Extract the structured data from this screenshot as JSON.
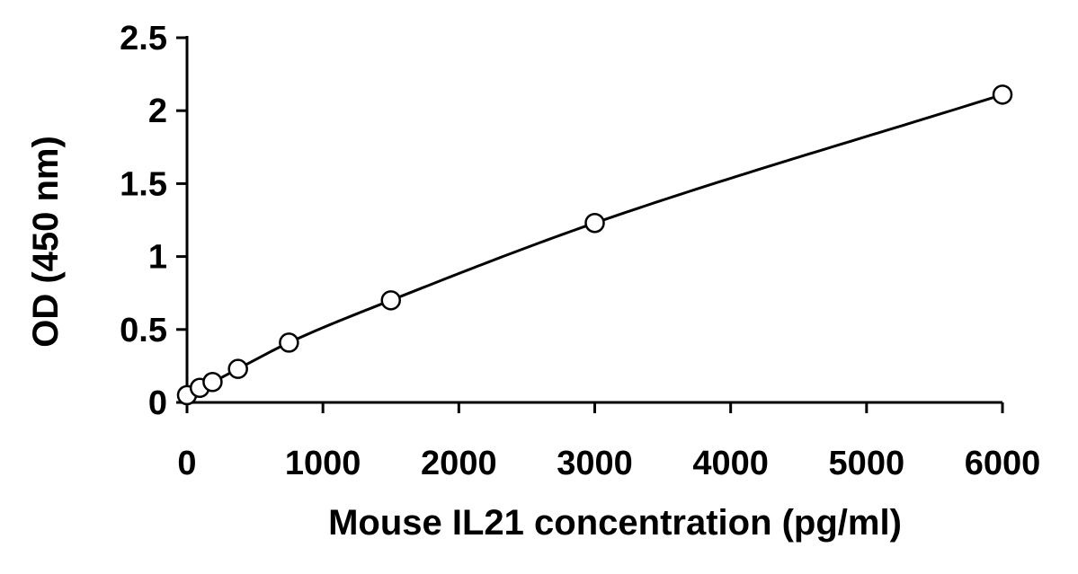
{
  "chart_data": {
    "type": "scatter",
    "title": "",
    "xlabel": "Mouse IL21 concentration (pg/ml)",
    "ylabel": "OD (450 nm)",
    "xlim": [
      0,
      6000
    ],
    "ylim": [
      0,
      2.5
    ],
    "x_ticks": [
      0,
      1000,
      2000,
      3000,
      4000,
      5000,
      6000
    ],
    "x_tick_labels": [
      "0",
      "1000",
      "2000",
      "3000",
      "4000",
      "5000",
      "6000"
    ],
    "y_ticks": [
      0,
      0.5,
      1,
      1.5,
      2,
      2.5
    ],
    "y_tick_labels": [
      "0",
      "0.5",
      "1",
      "1.5",
      "2",
      "2.5"
    ],
    "grid": false,
    "legend": "none",
    "series": [
      {
        "marker": "open-circle",
        "fit_line": "smooth-curve",
        "x": [
          0,
          94,
          188,
          375,
          750,
          1500,
          3000,
          6000
        ],
        "y": [
          0.05,
          0.1,
          0.14,
          0.23,
          0.41,
          0.7,
          1.23,
          2.11
        ]
      }
    ],
    "colors": {
      "axis": "#000000",
      "marker_stroke": "#000000",
      "marker_fill": "#ffffff",
      "curve": "#000000",
      "background": "#ffffff"
    }
  }
}
